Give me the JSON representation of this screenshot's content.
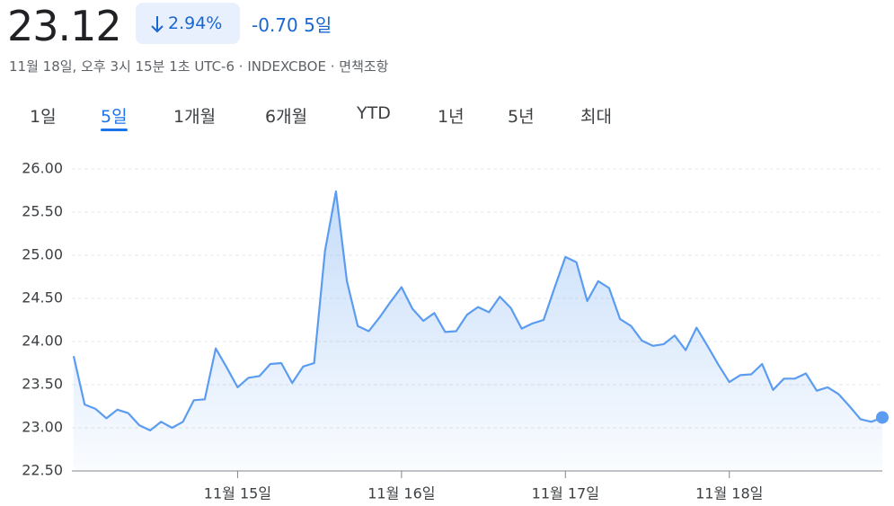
{
  "header": {
    "price": "23.12",
    "change_percent": "2.94%",
    "change": "-0.70",
    "period": "5일",
    "timestamp": "11월 18일, 오후 3시 15분 1초 UTC-6 · INDEXCBOE · 면책조항"
  },
  "tabs": {
    "items": [
      "1일",
      "5일",
      "1개월",
      "6개월",
      "YTD",
      "1년",
      "5년",
      "최대"
    ],
    "selected": 1
  },
  "chart_data": {
    "type": "line",
    "color": "#5b9cf0",
    "values": [
      23.83,
      23.27,
      23.22,
      23.11,
      23.21,
      23.17,
      23.03,
      22.97,
      23.07,
      23.0,
      23.07,
      23.32,
      23.33,
      23.92,
      23.7,
      23.47,
      23.58,
      23.6,
      23.74,
      23.75,
      23.52,
      23.71,
      23.75,
      25.05,
      25.74,
      24.7,
      24.18,
      24.12,
      24.28,
      24.46,
      24.63,
      24.38,
      24.24,
      24.33,
      24.11,
      24.12,
      24.31,
      24.4,
      24.34,
      24.52,
      24.39,
      24.15,
      24.21,
      24.25,
      24.62,
      24.98,
      24.92,
      24.47,
      24.7,
      24.62,
      24.26,
      24.18,
      24.01,
      23.95,
      23.97,
      24.07,
      23.9,
      24.16,
      23.95,
      23.73,
      23.53,
      23.61,
      23.62,
      23.74,
      23.44,
      23.57,
      23.57,
      23.63,
      23.43,
      23.47,
      23.39,
      23.25,
      23.1,
      23.07,
      23.12
    ],
    "xlim": [
      0,
      74
    ],
    "xticks": [
      {
        "value": 15,
        "label": "11월 15일"
      },
      {
        "value": 30,
        "label": "11월 16일"
      },
      {
        "value": 45,
        "label": "11월 17일"
      },
      {
        "value": 60,
        "label": "11월 18일"
      }
    ],
    "ylim": [
      22.5,
      26
    ],
    "yticks": [
      {
        "value": 22.5,
        "label": "22.50"
      },
      {
        "value": 23,
        "label": "23.00"
      },
      {
        "value": 23.5,
        "label": "23.50"
      },
      {
        "value": 24,
        "label": "24.00"
      },
      {
        "value": 24.5,
        "label": "24.50"
      },
      {
        "value": 25,
        "label": "25.00"
      },
      {
        "value": 25.5,
        "label": "25.50"
      },
      {
        "value": 26,
        "label": "26.00"
      }
    ],
    "grid": true
  }
}
